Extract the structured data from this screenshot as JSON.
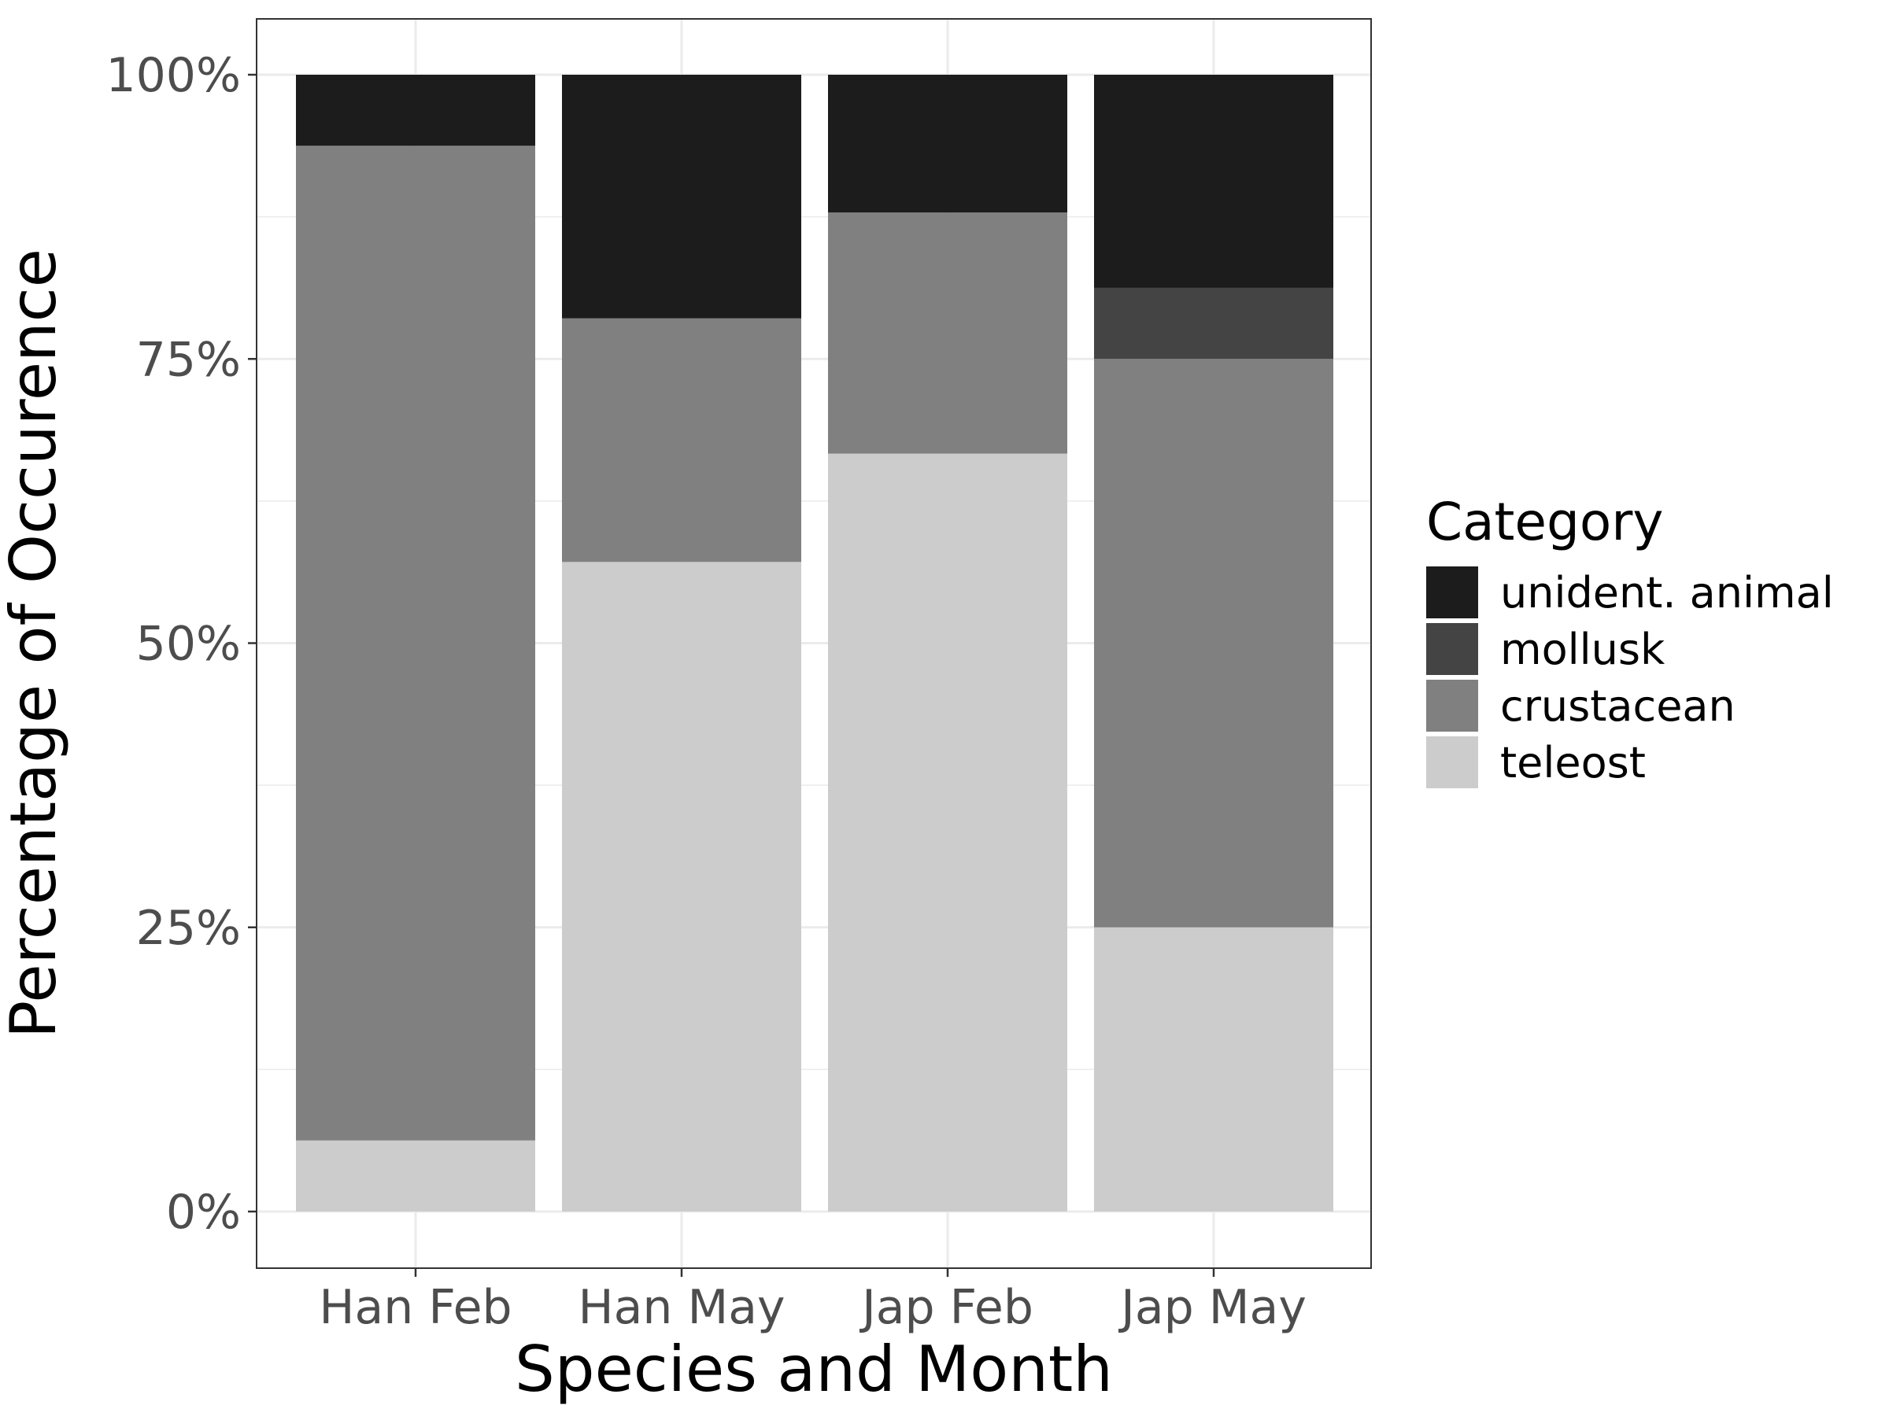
{
  "chart_data": {
    "type": "bar",
    "stacked": true,
    "normalized": true,
    "title": "",
    "xlabel": "Species and Month",
    "ylabel": "Percentage of Occurence",
    "ylim": [
      0,
      1
    ],
    "yticks": [
      0,
      0.25,
      0.5,
      0.75,
      1
    ],
    "ytick_labels": [
      "0%",
      "25%",
      "50%",
      "75%",
      "100%"
    ],
    "categories": [
      "Han Feb",
      "Han May",
      "Jap Feb",
      "Jap May"
    ],
    "series": [
      {
        "name": "teleost",
        "color": "#cccccc",
        "values": [
          0.0625,
          0.5714,
          0.6667,
          0.25
        ]
      },
      {
        "name": "crustacean",
        "color": "#808080",
        "values": [
          0.875,
          0.2143,
          0.2121,
          0.5
        ]
      },
      {
        "name": "mollusk",
        "color": "#444444",
        "values": [
          0,
          0,
          0,
          0.0625
        ]
      },
      {
        "name": "unident. animal",
        "color": "#1c1c1c",
        "values": [
          0.0625,
          0.2143,
          0.1212,
          0.1875
        ]
      }
    ],
    "legend": {
      "title": "Category",
      "position": "right",
      "order": [
        "unident. animal",
        "mollusk",
        "crustacean",
        "teleost"
      ]
    },
    "grid": true,
    "theme": "bw"
  }
}
